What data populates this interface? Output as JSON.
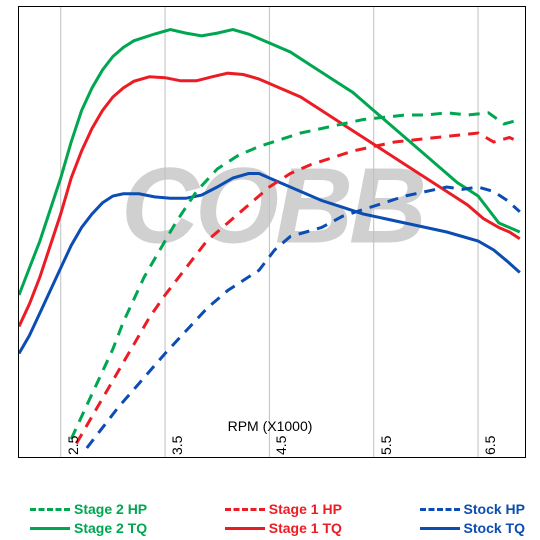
{
  "watermark_text": "COBB",
  "axis": {
    "xlabel": "RPM (X1000)",
    "xticks": [
      2.5,
      3.5,
      4.5,
      5.5,
      6.5
    ],
    "xlim": [
      2.1,
      6.95
    ],
    "ylim": [
      0,
      100
    ],
    "grid_color": "#bfbfbf",
    "background_color": "#ffffff"
  },
  "colors": {
    "stage2": "#00a650",
    "stage1": "#ec1c24",
    "stock": "#0b4db2"
  },
  "series": {
    "stage2_hp": {
      "color": "#00a650",
      "dashed": true,
      "line_width": 3,
      "points": [
        [
          2.6,
          4
        ],
        [
          2.7,
          9
        ],
        [
          2.8,
          14
        ],
        [
          2.9,
          19
        ],
        [
          3.0,
          24
        ],
        [
          3.1,
          30
        ],
        [
          3.2,
          35
        ],
        [
          3.3,
          40
        ],
        [
          3.4,
          44
        ],
        [
          3.6,
          52
        ],
        [
          3.8,
          59
        ],
        [
          4.0,
          64
        ],
        [
          4.2,
          67
        ],
        [
          4.4,
          69
        ],
        [
          4.6,
          70.5
        ],
        [
          4.8,
          72
        ],
        [
          5.0,
          73
        ],
        [
          5.2,
          74
        ],
        [
          5.4,
          75
        ],
        [
          5.6,
          75.5
        ],
        [
          5.8,
          76
        ],
        [
          6.0,
          76
        ],
        [
          6.2,
          76.5
        ],
        [
          6.4,
          76
        ],
        [
          6.6,
          76.5
        ],
        [
          6.75,
          74
        ],
        [
          6.9,
          75
        ]
      ]
    },
    "stage2_tq": {
      "color": "#00a650",
      "dashed": false,
      "line_width": 3,
      "points": [
        [
          2.1,
          36
        ],
        [
          2.2,
          42
        ],
        [
          2.3,
          48
        ],
        [
          2.4,
          55
        ],
        [
          2.5,
          62
        ],
        [
          2.6,
          70
        ],
        [
          2.7,
          77
        ],
        [
          2.8,
          82
        ],
        [
          2.9,
          86
        ],
        [
          3.0,
          89
        ],
        [
          3.1,
          91
        ],
        [
          3.2,
          92.5
        ],
        [
          3.4,
          94
        ],
        [
          3.55,
          95
        ],
        [
          3.7,
          94.2
        ],
        [
          3.85,
          93.6
        ],
        [
          4.0,
          94.2
        ],
        [
          4.15,
          95
        ],
        [
          4.3,
          94
        ],
        [
          4.5,
          92
        ],
        [
          4.7,
          90
        ],
        [
          4.9,
          87
        ],
        [
          5.1,
          84
        ],
        [
          5.3,
          81
        ],
        [
          5.5,
          77
        ],
        [
          5.7,
          73
        ],
        [
          5.9,
          69
        ],
        [
          6.1,
          65
        ],
        [
          6.3,
          61
        ],
        [
          6.5,
          58
        ],
        [
          6.6,
          55
        ],
        [
          6.7,
          52
        ],
        [
          6.8,
          51
        ],
        [
          6.9,
          50
        ]
      ]
    },
    "stage1_hp": {
      "color": "#ec1c24",
      "dashed": true,
      "line_width": 3,
      "points": [
        [
          2.65,
          3
        ],
        [
          2.75,
          7
        ],
        [
          2.85,
          11
        ],
        [
          2.95,
          15
        ],
        [
          3.05,
          19
        ],
        [
          3.2,
          25
        ],
        [
          3.35,
          31
        ],
        [
          3.5,
          36
        ],
        [
          3.7,
          42
        ],
        [
          3.9,
          48
        ],
        [
          4.1,
          52
        ],
        [
          4.3,
          56
        ],
        [
          4.5,
          60
        ],
        [
          4.7,
          63
        ],
        [
          4.9,
          65
        ],
        [
          5.1,
          66.5
        ],
        [
          5.3,
          68
        ],
        [
          5.5,
          69
        ],
        [
          5.7,
          70
        ],
        [
          5.9,
          70.5
        ],
        [
          6.1,
          71
        ],
        [
          6.3,
          71.5
        ],
        [
          6.5,
          72
        ],
        [
          6.65,
          70
        ],
        [
          6.8,
          71
        ],
        [
          6.9,
          70
        ]
      ]
    },
    "stage1_tq": {
      "color": "#ec1c24",
      "dashed": false,
      "line_width": 3,
      "points": [
        [
          2.1,
          29
        ],
        [
          2.2,
          34
        ],
        [
          2.3,
          40
        ],
        [
          2.4,
          47
        ],
        [
          2.5,
          54
        ],
        [
          2.6,
          62
        ],
        [
          2.7,
          68
        ],
        [
          2.8,
          73
        ],
        [
          2.9,
          77
        ],
        [
          3.0,
          80
        ],
        [
          3.1,
          82
        ],
        [
          3.2,
          83.5
        ],
        [
          3.35,
          84.5
        ],
        [
          3.5,
          84.3
        ],
        [
          3.65,
          83.6
        ],
        [
          3.8,
          83.6
        ],
        [
          3.95,
          84.5
        ],
        [
          4.1,
          85.3
        ],
        [
          4.25,
          85
        ],
        [
          4.4,
          84
        ],
        [
          4.6,
          82
        ],
        [
          4.8,
          80
        ],
        [
          5.0,
          77
        ],
        [
          5.2,
          74
        ],
        [
          5.4,
          71
        ],
        [
          5.6,
          68
        ],
        [
          5.8,
          65
        ],
        [
          6.0,
          62
        ],
        [
          6.2,
          59
        ],
        [
          6.4,
          56
        ],
        [
          6.55,
          53
        ],
        [
          6.7,
          51
        ],
        [
          6.8,
          50
        ],
        [
          6.9,
          48.5
        ]
      ]
    },
    "stock_hp": {
      "color": "#0b4db2",
      "dashed": true,
      "line_width": 3,
      "points": [
        [
          2.75,
          2
        ],
        [
          2.85,
          5
        ],
        [
          2.95,
          8
        ],
        [
          3.05,
          11
        ],
        [
          3.2,
          15
        ],
        [
          3.35,
          19
        ],
        [
          3.5,
          23
        ],
        [
          3.7,
          28
        ],
        [
          3.9,
          33
        ],
        [
          4.1,
          37
        ],
        [
          4.3,
          40
        ],
        [
          4.4,
          41.5
        ],
        [
          4.55,
          46
        ],
        [
          4.7,
          49
        ],
        [
          4.85,
          50
        ],
        [
          5.0,
          51
        ],
        [
          5.2,
          53.5
        ],
        [
          5.4,
          55
        ],
        [
          5.6,
          56.5
        ],
        [
          5.8,
          58
        ],
        [
          6.0,
          59
        ],
        [
          6.2,
          60
        ],
        [
          6.35,
          59.5
        ],
        [
          6.5,
          60
        ],
        [
          6.65,
          59
        ],
        [
          6.78,
          57
        ],
        [
          6.9,
          54.5
        ]
      ]
    },
    "stock_tq": {
      "color": "#0b4db2",
      "dashed": false,
      "line_width": 3,
      "points": [
        [
          2.1,
          23
        ],
        [
          2.2,
          27
        ],
        [
          2.3,
          32
        ],
        [
          2.4,
          37
        ],
        [
          2.5,
          42
        ],
        [
          2.6,
          47
        ],
        [
          2.7,
          51
        ],
        [
          2.8,
          54
        ],
        [
          2.9,
          56.5
        ],
        [
          3.0,
          58
        ],
        [
          3.1,
          58.5
        ],
        [
          3.25,
          58.5
        ],
        [
          3.4,
          57.8
        ],
        [
          3.55,
          57.5
        ],
        [
          3.7,
          57.5
        ],
        [
          3.85,
          58.2
        ],
        [
          4.0,
          60
        ],
        [
          4.15,
          62
        ],
        [
          4.3,
          63
        ],
        [
          4.4,
          63
        ],
        [
          4.5,
          62
        ],
        [
          4.65,
          60.5
        ],
        [
          4.8,
          59
        ],
        [
          5.0,
          57
        ],
        [
          5.2,
          55.5
        ],
        [
          5.4,
          54
        ],
        [
          5.6,
          53
        ],
        [
          5.8,
          52
        ],
        [
          6.0,
          51
        ],
        [
          6.2,
          50
        ],
        [
          6.35,
          49
        ],
        [
          6.5,
          48
        ],
        [
          6.65,
          46
        ],
        [
          6.78,
          43.5
        ],
        [
          6.9,
          41
        ]
      ]
    }
  },
  "legend": {
    "items": [
      {
        "label": "Stage 2 HP",
        "color": "#00a650",
        "dashed": true
      },
      {
        "label": "Stage 2 TQ",
        "color": "#00a650",
        "dashed": false
      },
      {
        "label": "Stage 1 HP",
        "color": "#ec1c24",
        "dashed": true
      },
      {
        "label": "Stage 1 TQ",
        "color": "#ec1c24",
        "dashed": false
      },
      {
        "label": "Stock HP",
        "color": "#0b4db2",
        "dashed": true
      },
      {
        "label": "Stock TQ",
        "color": "#0b4db2",
        "dashed": false
      }
    ]
  }
}
